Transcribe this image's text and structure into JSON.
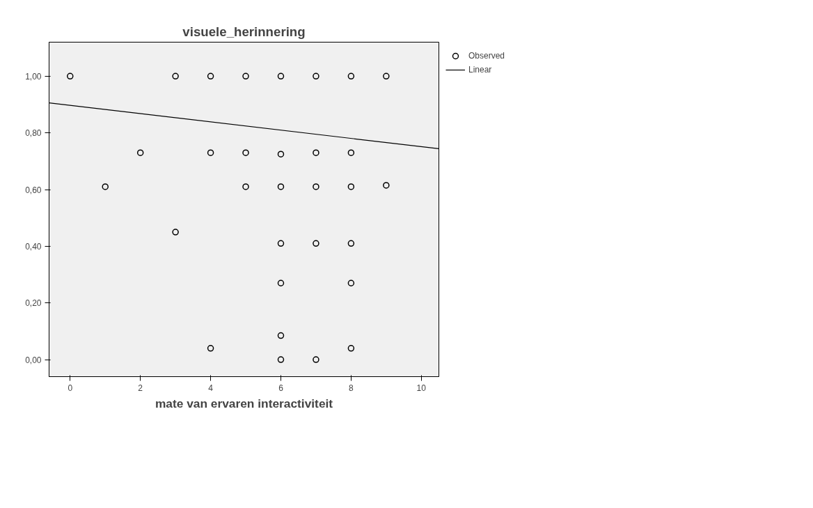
{
  "chart_data": {
    "type": "scatter",
    "title": "visuele_herinnering",
    "xlabel": "mate van ervaren interactiviteit",
    "series": [
      {
        "name": "Observed",
        "color": "#000000",
        "marker": "circle",
        "x": [
          0,
          3,
          4,
          5,
          6,
          7,
          8,
          9,
          2,
          4,
          5,
          6,
          7,
          8,
          1,
          5,
          6,
          7,
          8,
          9,
          3,
          6,
          7,
          8,
          6,
          8,
          6,
          4,
          8,
          6,
          7
        ],
        "values": [
          1.0,
          1.0,
          1.0,
          1.0,
          1.0,
          1.0,
          1.0,
          1.0,
          0.73,
          0.73,
          0.73,
          0.725,
          0.73,
          0.73,
          0.61,
          0.61,
          0.61,
          0.61,
          0.61,
          0.615,
          0.45,
          0.41,
          0.41,
          0.41,
          0.27,
          0.27,
          0.085,
          0.04,
          0.04,
          0.0,
          0.0
        ]
      },
      {
        "name": "Linear",
        "type": "line",
        "color": "#000000",
        "line_style": "solid",
        "x": [
          -0.6,
          10.5
        ],
        "values": [
          0.906,
          0.744
        ]
      }
    ],
    "xlim": [
      -0.6,
      10.5
    ],
    "ylim": [
      -0.06,
      1.12
    ],
    "xticks": [
      0,
      2,
      4,
      6,
      8,
      10
    ],
    "yticks": [
      {
        "value": 0,
        "label": "0,00"
      },
      {
        "value": 0.2,
        "label": "0,20"
      },
      {
        "value": 0.4,
        "label": "0,40"
      },
      {
        "value": 0.6,
        "label": "0,60"
      },
      {
        "value": 0.8,
        "label": "0,80"
      },
      {
        "value": 1,
        "label": "1,00"
      }
    ],
    "grid": false,
    "legend": "top right"
  }
}
